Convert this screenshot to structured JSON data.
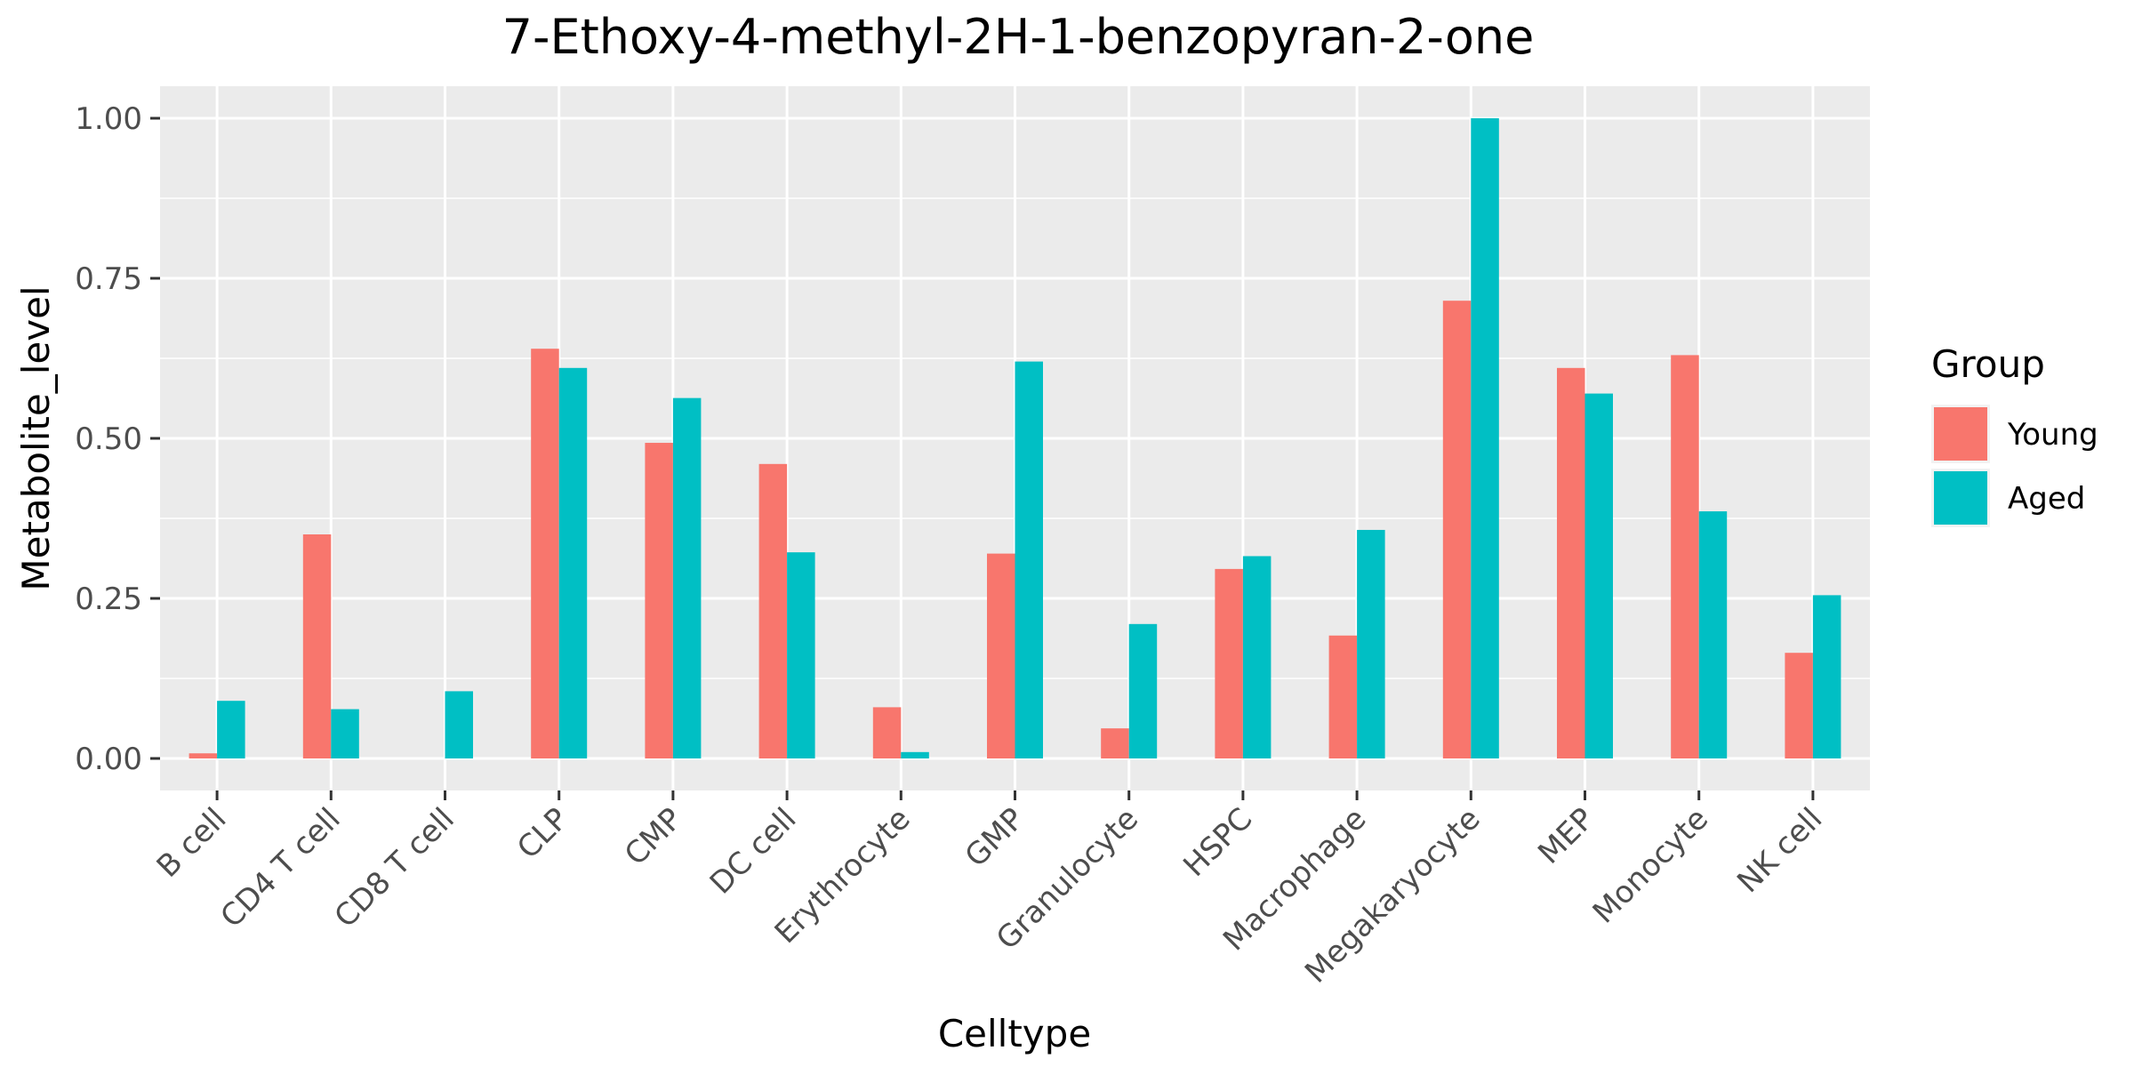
{
  "chart_data": {
    "type": "bar",
    "title": "7-Ethoxy-4-methyl-2H-1-benzopyran-2-one",
    "xlabel": "Celltype",
    "ylabel": "Metabolite_level",
    "ylim": [
      -0.05,
      1.05
    ],
    "yticks": [
      0.0,
      0.25,
      0.5,
      0.75,
      1.0
    ],
    "ytick_labels": [
      "0.00",
      "0.25",
      "0.50",
      "0.75",
      "1.00"
    ],
    "categories": [
      "B cell",
      "CD4 T cell",
      "CD8 T cell",
      "CLP",
      "CMP",
      "DC cell",
      "Erythrocyte",
      "GMP",
      "Granulocyte",
      "HSPC",
      "Macrophage",
      "Megakaryocyte",
      "MEP",
      "Monocyte",
      "NK cell"
    ],
    "series": [
      {
        "name": "Young",
        "color": "#F8766D",
        "values": [
          0.008,
          0.35,
          null,
          0.64,
          0.493,
          0.46,
          0.08,
          0.32,
          0.047,
          0.296,
          0.192,
          0.715,
          0.61,
          0.63,
          0.165
        ]
      },
      {
        "name": "Aged",
        "color": "#00BFC4",
        "values": [
          0.09,
          0.077,
          0.105,
          0.61,
          0.563,
          0.322,
          0.01,
          0.62,
          0.21,
          0.316,
          0.357,
          1.0,
          0.57,
          0.386,
          0.255
        ]
      }
    ],
    "grid": true,
    "legend": {
      "title": "Group",
      "position": "right"
    }
  }
}
